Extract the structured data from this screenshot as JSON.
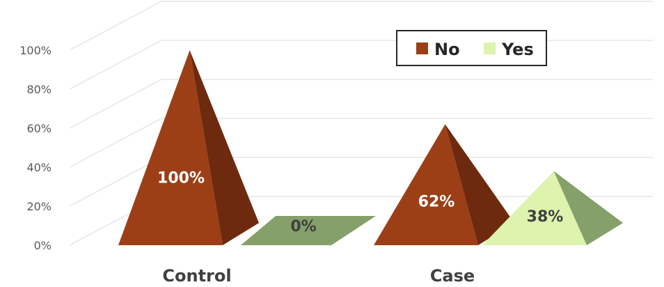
{
  "chart_data": {
    "type": "bar",
    "style": "3d-pyramid",
    "categories": [
      "Control",
      "Case"
    ],
    "series": [
      {
        "name": "No",
        "values": [
          100,
          62
        ],
        "color": "#9C3F17",
        "shade": "#6E2A0E"
      },
      {
        "name": "Yes",
        "values": [
          0,
          38
        ],
        "color": "#DDF3AE",
        "shade": "#86A06A"
      }
    ],
    "data_labels": [
      [
        "100%",
        "0%"
      ],
      [
        "62%",
        "38%"
      ]
    ],
    "y_ticks": [
      "0%",
      "20%",
      "40%",
      "60%",
      "80%",
      "100%"
    ],
    "ylim": [
      0,
      100
    ],
    "grid": true,
    "legend": "top-right"
  }
}
